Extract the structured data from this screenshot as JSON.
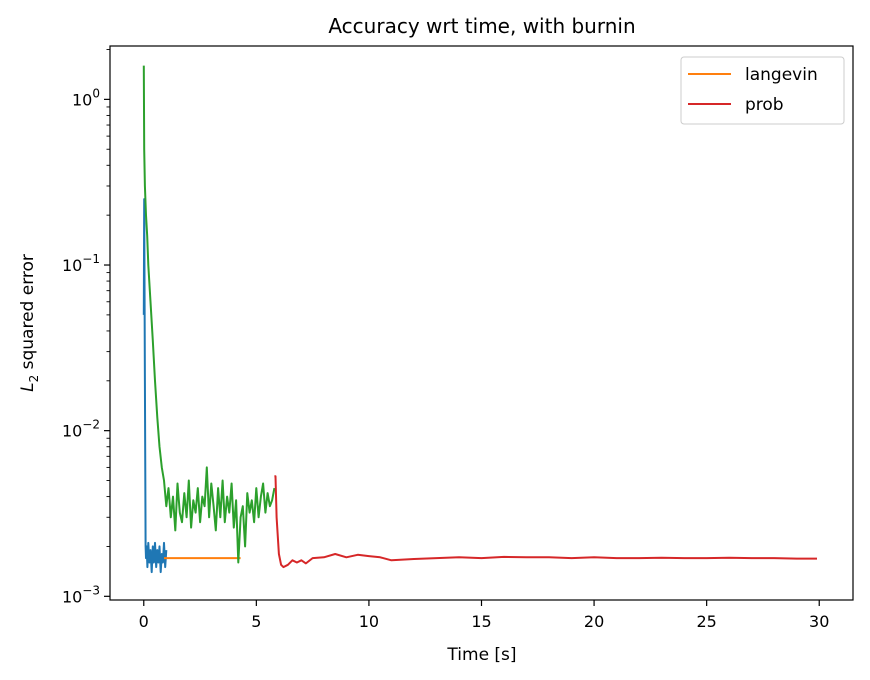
{
  "chart_data": {
    "type": "line",
    "title": "Accuracy wrt time, with burnin",
    "xlabel": "Time [s]",
    "ylabel_italic": "L",
    "ylabel_sub": "2",
    "ylabel_rest": " squared error",
    "yscale": "log",
    "xlim": [
      -1.5,
      31.5
    ],
    "ylim": [
      0.00095,
      2.1
    ],
    "grid": false,
    "legend_position": "top-right",
    "x_ticks": [
      0,
      5,
      10,
      15,
      20,
      25,
      30
    ],
    "x_tick_labels": [
      "0",
      "5",
      "10",
      "15",
      "20",
      "25",
      "30"
    ],
    "y_ticks": [
      {
        "value": 0.001,
        "base": "10",
        "exp": "−3"
      },
      {
        "value": 0.01,
        "base": "10",
        "exp": "−2"
      },
      {
        "value": 0.1,
        "base": "10",
        "exp": "−1"
      },
      {
        "value": 1,
        "base": "10",
        "exp": "0"
      }
    ],
    "series": [
      {
        "color": "#1f77b4",
        "in_legend": false,
        "x": [
          0,
          0.02,
          0.05,
          0.08,
          0.1,
          0.13,
          0.16,
          0.2,
          0.25,
          0.3,
          0.35,
          0.4,
          0.45,
          0.5,
          0.55,
          0.6,
          0.65,
          0.7,
          0.75,
          0.8,
          0.85,
          0.9,
          0.95,
          1.0
        ],
        "y": [
          0.05,
          0.25,
          0.02,
          0.002,
          0.0017,
          0.002,
          0.0015,
          0.0021,
          0.0016,
          0.0019,
          0.0014,
          0.002,
          0.0016,
          0.0021,
          0.0015,
          0.0019,
          0.0016,
          0.002,
          0.0014,
          0.0018,
          0.0016,
          0.0021,
          0.0015,
          0.0019
        ]
      },
      {
        "name": "langevin",
        "color": "#ff7f0e",
        "in_legend": true,
        "x": [
          0.9,
          1.0,
          2.0,
          3.0,
          4.0,
          4.3
        ],
        "y": [
          0.0017,
          0.0017,
          0.0017,
          0.0017,
          0.0017,
          0.0017
        ]
      },
      {
        "color": "#2ca02c",
        "in_legend": false,
        "x": [
          0,
          0.02,
          0.05,
          0.1,
          0.15,
          0.2,
          0.3,
          0.4,
          0.5,
          0.6,
          0.7,
          0.8,
          0.9,
          1.0,
          1.1,
          1.2,
          1.3,
          1.4,
          1.5,
          1.6,
          1.7,
          1.8,
          1.9,
          2.0,
          2.1,
          2.2,
          2.3,
          2.4,
          2.5,
          2.6,
          2.7,
          2.8,
          2.9,
          3.0,
          3.1,
          3.2,
          3.3,
          3.4,
          3.5,
          3.6,
          3.7,
          3.8,
          3.9,
          4.0,
          4.1,
          4.2,
          4.3,
          4.4,
          4.5,
          4.6,
          4.7,
          4.8,
          4.9,
          5.0,
          5.1,
          5.2,
          5.3,
          5.4,
          5.5,
          5.6,
          5.7,
          5.8
        ],
        "y": [
          1.6,
          0.5,
          0.3,
          0.2,
          0.15,
          0.1,
          0.06,
          0.035,
          0.02,
          0.012,
          0.008,
          0.006,
          0.005,
          0.0035,
          0.0045,
          0.003,
          0.004,
          0.0025,
          0.0048,
          0.0032,
          0.0028,
          0.0042,
          0.003,
          0.005,
          0.0026,
          0.0038,
          0.0032,
          0.0045,
          0.0028,
          0.004,
          0.0035,
          0.006,
          0.003,
          0.0048,
          0.0035,
          0.0025,
          0.0045,
          0.003,
          0.005,
          0.0028,
          0.004,
          0.0032,
          0.0048,
          0.0026,
          0.0038,
          0.0016,
          0.003,
          0.0035,
          0.002,
          0.0042,
          0.0032,
          0.0038,
          0.0028,
          0.0045,
          0.003,
          0.004,
          0.0048,
          0.0032,
          0.0042,
          0.0035,
          0.0038,
          0.0045
        ]
      },
      {
        "name": "prob",
        "color": "#d62728",
        "in_legend": true,
        "x": [
          5.8,
          5.85,
          5.9,
          6.0,
          6.1,
          6.2,
          6.4,
          6.6,
          6.8,
          7.0,
          7.2,
          7.5,
          8.0,
          8.5,
          9.0,
          9.5,
          10.0,
          10.5,
          11.0,
          12.0,
          13.0,
          14.0,
          15.0,
          16.0,
          17.0,
          18.0,
          19.0,
          20.0,
          21.0,
          22.0,
          23.0,
          24.0,
          25.0,
          26.0,
          27.0,
          28.0,
          29.0,
          29.9
        ],
        "y": [
          0.0053,
          0.0053,
          0.003,
          0.0018,
          0.00155,
          0.0015,
          0.00155,
          0.00165,
          0.0016,
          0.00165,
          0.00158,
          0.0017,
          0.00172,
          0.0018,
          0.00172,
          0.00178,
          0.00175,
          0.00172,
          0.00165,
          0.00168,
          0.0017,
          0.00172,
          0.0017,
          0.00173,
          0.00172,
          0.00172,
          0.0017,
          0.00172,
          0.0017,
          0.0017,
          0.00171,
          0.0017,
          0.0017,
          0.00171,
          0.0017,
          0.0017,
          0.00169,
          0.00169
        ]
      }
    ]
  }
}
